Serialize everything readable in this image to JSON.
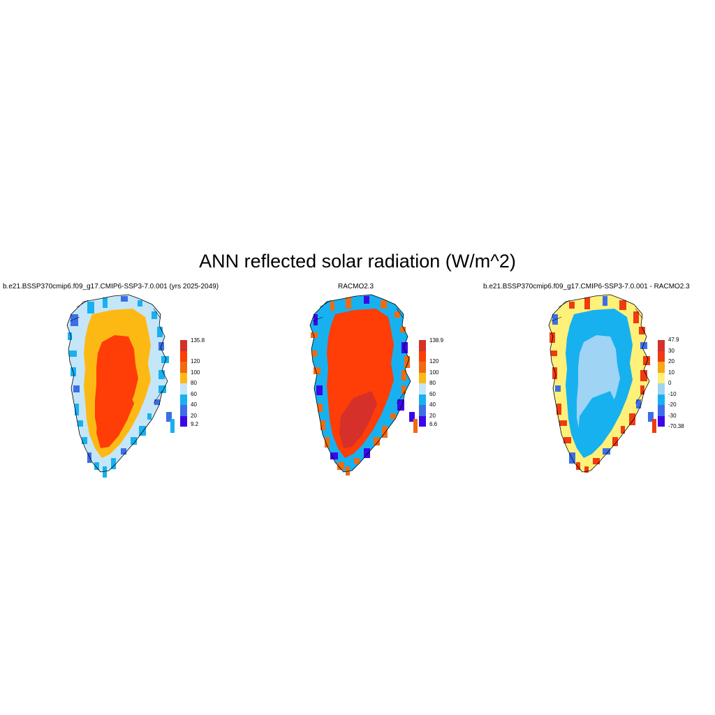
{
  "figure": {
    "title": "ANN reflected solar radiation (W/m^2)"
  },
  "panels": [
    {
      "key": "model",
      "title": "b.e21.BSSP370cmip6.f09_g17.CMIP6-SSP3-7.0.001 (yrs 2025-2049)",
      "colorbar": {
        "colors": [
          "#3b07e8",
          "#3c6ee8",
          "#17b1f0",
          "#c5e6f8",
          "#fdb913",
          "#f06a10",
          "#fe3d07",
          "#d5302a"
        ],
        "labels": [
          "9.2",
          "20",
          "40",
          "60",
          "80",
          "100",
          "120",
          "135.8"
        ]
      },
      "fields": {
        "outer": "#c5e6f8",
        "rim": "#17b1f0",
        "band": "#fdb913",
        "core": "#fe3d07",
        "south": "#fe3d07",
        "edge_dark": "#3c6ee8"
      }
    },
    {
      "key": "obs",
      "title": "RACMO2.3",
      "colorbar": {
        "colors": [
          "#3b07e8",
          "#3c6ee8",
          "#17b1f0",
          "#c5e6f8",
          "#fdb913",
          "#f06a10",
          "#fe3d07",
          "#d5302a"
        ],
        "labels": [
          "6.6",
          "20",
          "40",
          "60",
          "80",
          "100",
          "120",
          "138.9"
        ]
      },
      "fields": {
        "outer": "#17b1f0",
        "rim": "#f06a10",
        "band": "#fe3d07",
        "core": "#fe3d07",
        "south": "#d5302a",
        "edge_dark": "#3b07e8"
      }
    },
    {
      "key": "diff",
      "title": "b.e21.BSSP370cmip6.f09_g17.CMIP6-SSP3-7.0.001 - RACMO2.3",
      "colorbar": {
        "colors": [
          "#3b07e8",
          "#3c6ee8",
          "#17b1f0",
          "#9fd4f4",
          "#fef17a",
          "#f9a61b",
          "#ee3b13",
          "#d5302a"
        ],
        "labels": [
          "-70.38",
          "-30",
          "-20",
          "-10",
          "0",
          "10",
          "20",
          "30",
          "47.9"
        ]
      },
      "fields": {
        "outer": "#fef17a",
        "rim": "#ee3b13",
        "band": "#17b1f0",
        "core": "#9fd4f4",
        "south": "#17b1f0",
        "edge_dark": "#3c6ee8"
      }
    }
  ]
}
